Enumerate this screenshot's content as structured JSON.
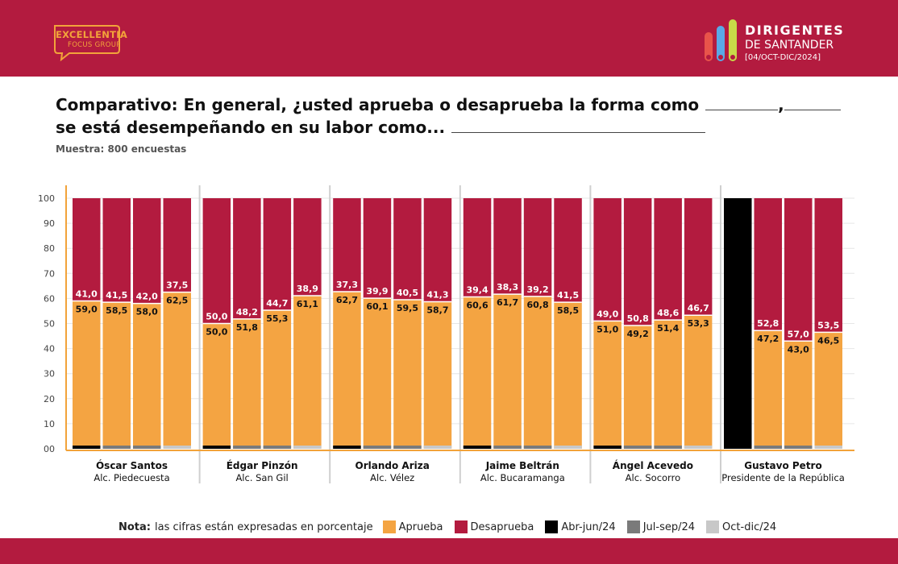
{
  "header": {
    "logo_line1": "EXCELLENTIA",
    "logo_line2": "FOCUS GROUP",
    "brand_line1": "DIRIGENTES",
    "brand_line2": "DE SANTANDER",
    "brand_line3": "[04/OCT-DIC/2024]"
  },
  "title_line1": "Comparativo: En general, ¿usted aprueba o desaprueba la forma como",
  "title_comma": ",",
  "title_line2": "se está desempeñando en su labor como...",
  "subtitle": "Muestra: 800 encuestas",
  "legend": {
    "note_label": "Nota:",
    "note_text": "las cifras están expresadas en porcentaje",
    "items": [
      "Aprueba",
      "Desaprueba",
      "Abr-jun/24",
      "Jul-sep/24",
      "Oct-dic/24"
    ]
  },
  "colors": {
    "aprueba": "#f4a442",
    "desaprueba": "#b31b3f",
    "abr_jun": "#000000",
    "jul_sep": "#7a7a7a",
    "oct_dic": "#c8c8c8",
    "axis": "#f2a33a",
    "brand": "#b31b3f"
  },
  "chart_data": {
    "type": "bar",
    "stacked": true,
    "ylim": [
      0,
      100
    ],
    "yticks": [
      "00",
      "10",
      "20",
      "30",
      "40",
      "50",
      "60",
      "70",
      "80",
      "90",
      "100"
    ],
    "period_order": [
      "Abr-jun/24",
      "Jul-sep/24",
      "Oct-dic/24"
    ],
    "groups": [
      {
        "name": "Óscar Santos",
        "role": "Alc. Piedecuesta",
        "bars": [
          {
            "period": "Abr-jun/24",
            "aprueba": 59.0,
            "desaprueba": 41.0,
            "aprueba_label": "59,0",
            "desaprueba_label": "41,0"
          },
          {
            "period": "Jul-sep/24",
            "aprueba": 58.5,
            "desaprueba": 41.5,
            "aprueba_label": "58,5",
            "desaprueba_label": "41,5"
          },
          {
            "period": "Jul-sep/24",
            "aprueba": 58.0,
            "desaprueba": 42.0,
            "aprueba_label": "58,0",
            "desaprueba_label": "42,0"
          },
          {
            "period": "Oct-dic/24",
            "aprueba": 62.5,
            "desaprueba": 37.5,
            "aprueba_label": "62,5",
            "desaprueba_label": "37,5"
          }
        ]
      },
      {
        "name": "Édgar Pinzón",
        "role": "Alc. San Gil",
        "bars": [
          {
            "period": "Abr-jun/24",
            "aprueba": 50.0,
            "desaprueba": 50.0,
            "aprueba_label": "50,0",
            "desaprueba_label": "50,0"
          },
          {
            "period": "Jul-sep/24",
            "aprueba": 51.8,
            "desaprueba": 48.2,
            "aprueba_label": "51,8",
            "desaprueba_label": "48,2"
          },
          {
            "period": "Jul-sep/24",
            "aprueba": 55.3,
            "desaprueba": 44.7,
            "aprueba_label": "55,3",
            "desaprueba_label": "44,7"
          },
          {
            "period": "Oct-dic/24",
            "aprueba": 61.1,
            "desaprueba": 38.9,
            "aprueba_label": "61,1",
            "desaprueba_label": "38,9"
          }
        ]
      },
      {
        "name": "Orlando Ariza",
        "role": "Alc. Vélez",
        "bars": [
          {
            "period": "Abr-jun/24",
            "aprueba": 62.7,
            "desaprueba": 37.3,
            "aprueba_label": "62,7",
            "desaprueba_label": "37,3"
          },
          {
            "period": "Jul-sep/24",
            "aprueba": 60.1,
            "desaprueba": 39.9,
            "aprueba_label": "60,1",
            "desaprueba_label": "39,9"
          },
          {
            "period": "Jul-sep/24",
            "aprueba": 59.5,
            "desaprueba": 40.5,
            "aprueba_label": "59,5",
            "desaprueba_label": "40,5"
          },
          {
            "period": "Oct-dic/24",
            "aprueba": 58.7,
            "desaprueba": 41.3,
            "aprueba_label": "58,7",
            "desaprueba_label": "41,3"
          }
        ]
      },
      {
        "name": "Jaime Beltrán",
        "role": "Alc. Bucaramanga",
        "bars": [
          {
            "period": "Abr-jun/24",
            "aprueba": 60.6,
            "desaprueba": 39.4,
            "aprueba_label": "60,6",
            "desaprueba_label": "39,4"
          },
          {
            "period": "Jul-sep/24",
            "aprueba": 61.7,
            "desaprueba": 38.3,
            "aprueba_label": "61,7",
            "desaprueba_label": "38,3"
          },
          {
            "period": "Jul-sep/24",
            "aprueba": 60.8,
            "desaprueba": 39.2,
            "aprueba_label": "60,8",
            "desaprueba_label": "39,2"
          },
          {
            "period": "Oct-dic/24",
            "aprueba": 58.5,
            "desaprueba": 41.5,
            "aprueba_label": "58,5",
            "desaprueba_label": "41,5"
          }
        ]
      },
      {
        "name": "Ángel Acevedo",
        "role": "Alc. Socorro",
        "bars": [
          {
            "period": "Abr-jun/24",
            "aprueba": 51.0,
            "desaprueba": 49.0,
            "aprueba_label": "51,0",
            "desaprueba_label": "49,0"
          },
          {
            "period": "Jul-sep/24",
            "aprueba": 49.2,
            "desaprueba": 50.8,
            "aprueba_label": "49,2",
            "desaprueba_label": "50,8"
          },
          {
            "period": "Jul-sep/24",
            "aprueba": 51.4,
            "desaprueba": 48.6,
            "aprueba_label": "51,4",
            "desaprueba_label": "48,6"
          },
          {
            "period": "Oct-dic/24",
            "aprueba": 53.3,
            "desaprueba": 46.7,
            "aprueba_label": "53,3",
            "desaprueba_label": "46,7"
          }
        ]
      },
      {
        "name": "Gustavo Petro",
        "role": "Presidente de la República",
        "bars": [
          {
            "period": "Abr-jun/24",
            "aprueba": null,
            "desaprueba": null,
            "aprueba_label": "",
            "desaprueba_label": ""
          },
          {
            "period": "Jul-sep/24",
            "aprueba": 47.2,
            "desaprueba": 52.8,
            "aprueba_label": "47,2",
            "desaprueba_label": "52,8"
          },
          {
            "period": "Jul-sep/24",
            "aprueba": 43.0,
            "desaprueba": 57.0,
            "aprueba_label": "43,0",
            "desaprueba_label": "57,0"
          },
          {
            "period": "Oct-dic/24",
            "aprueba": 46.5,
            "desaprueba": 53.5,
            "aprueba_label": "46,5",
            "desaprueba_label": "53,5"
          }
        ]
      }
    ]
  }
}
